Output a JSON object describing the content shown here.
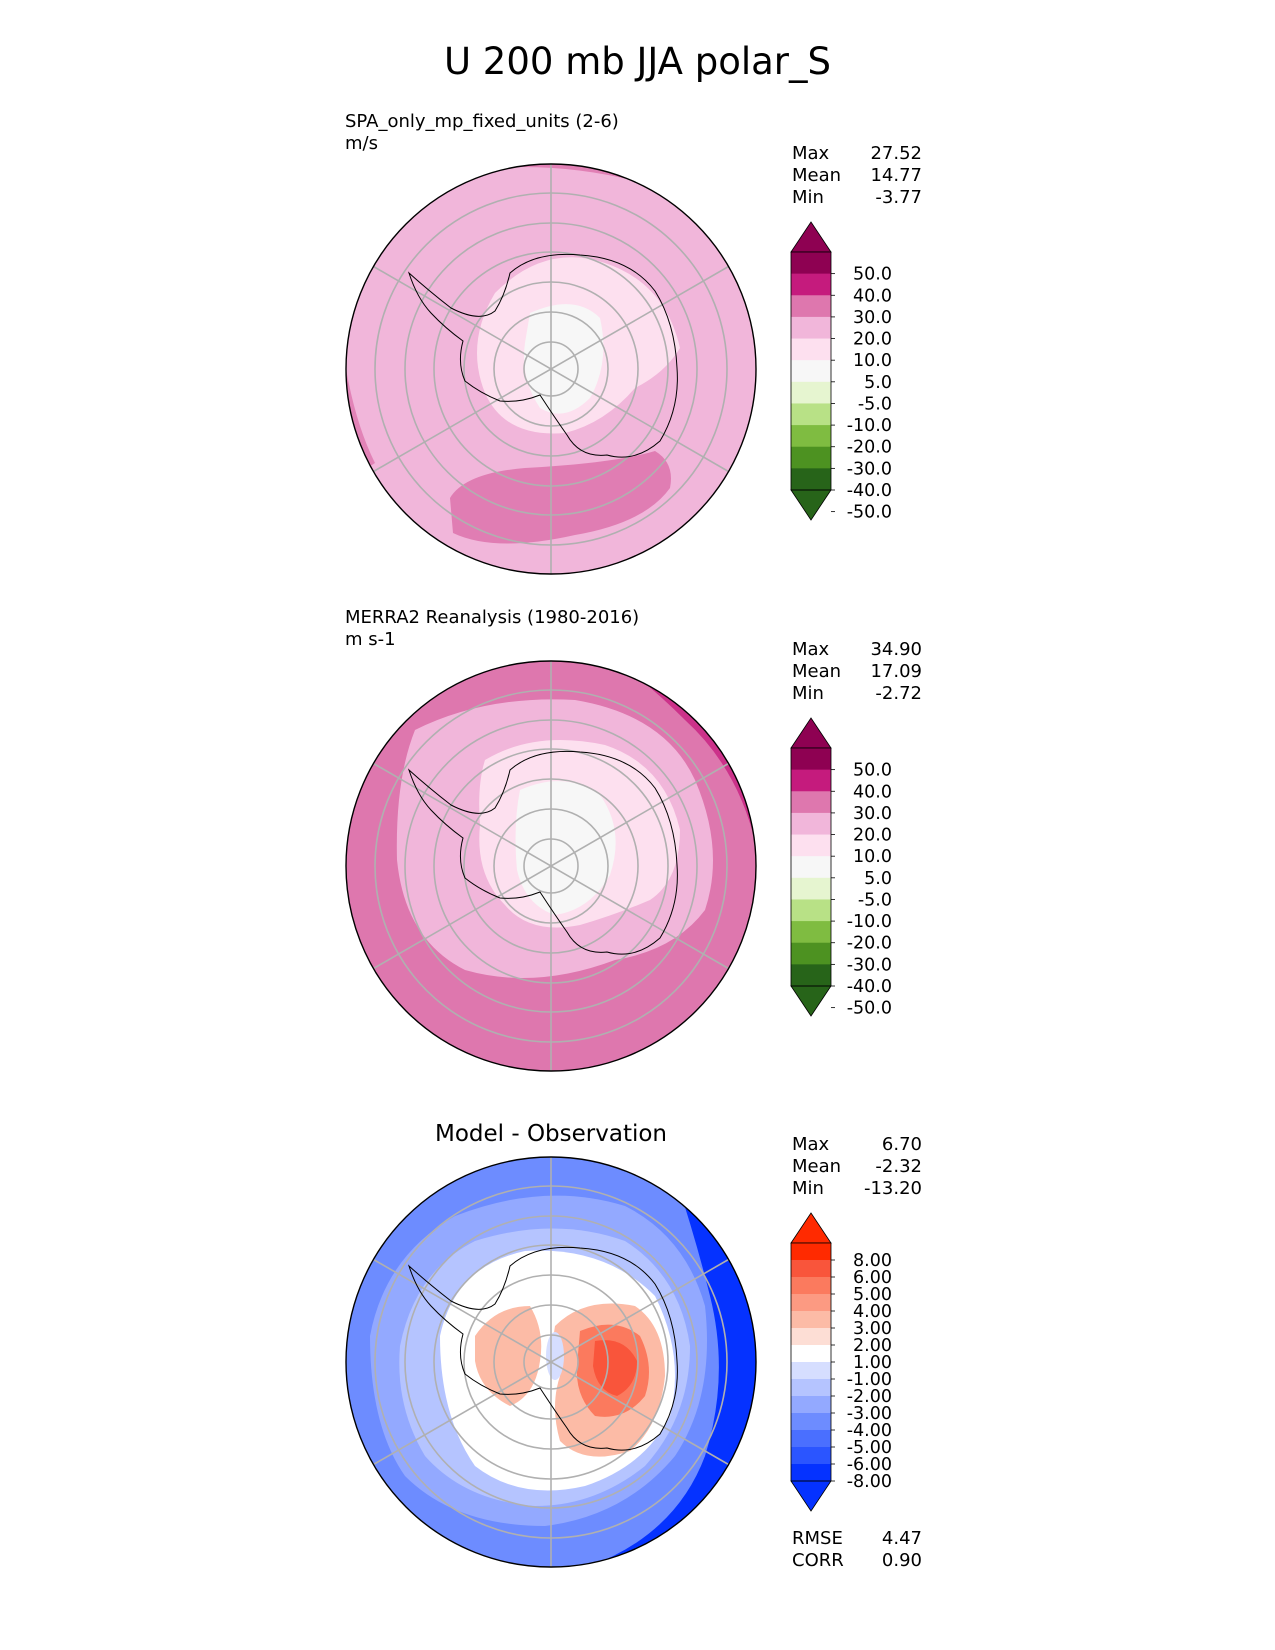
{
  "figure": {
    "title": "U 200 mb JJA polar_S"
  },
  "colors": {
    "pink_scale": [
      "#276419",
      "#4d9221",
      "#7fbc41",
      "#b8e186",
      "#e6f5d0",
      "#f7f7f7",
      "#fde0ef",
      "#f1b6da",
      "#de77ae",
      "#c51b7d",
      "#8e0152"
    ],
    "diff_scale": [
      "#0532ff",
      "#2b55ff",
      "#4a6fff",
      "#6d8cff",
      "#93a9ff",
      "#b5c4ff",
      "#d6deff",
      "#ffffff",
      "#fdded5",
      "#fcbba6",
      "#fc9a82",
      "#fb7a5e",
      "#f9553b",
      "#ff2a00"
    ],
    "grid": "#b0b0b0",
    "coast": "#000000"
  },
  "chart_data": [
    {
      "type": "heatmap",
      "name": "test",
      "title": "SPA_only_mp_fixed_units (2-6)",
      "units": "m/s",
      "projection": "south polar stereographic",
      "stats": {
        "max_label": "Max",
        "max": "27.52",
        "mean_label": "Mean",
        "mean": "14.77",
        "min_label": "Min",
        "min": "-3.77"
      },
      "colorbar": {
        "levels": [
          "50.0",
          "40.0",
          "30.0",
          "20.0",
          "10.0",
          "5.0",
          "-5.0",
          "-10.0",
          "-20.0",
          "-30.0",
          "-40.0",
          "-50.0"
        ],
        "extend": "both"
      }
    },
    {
      "type": "heatmap",
      "name": "reference",
      "title": "MERRA2 Reanalysis (1980-2016)",
      "units": "m s-1",
      "projection": "south polar stereographic",
      "stats": {
        "max_label": "Max",
        "max": "34.90",
        "mean_label": "Mean",
        "mean": "17.09",
        "min_label": "Min",
        "min": "-2.72"
      },
      "colorbar": {
        "levels": [
          "50.0",
          "40.0",
          "30.0",
          "20.0",
          "10.0",
          "5.0",
          "-5.0",
          "-10.0",
          "-20.0",
          "-30.0",
          "-40.0",
          "-50.0"
        ],
        "extend": "both"
      }
    },
    {
      "type": "heatmap",
      "name": "difference",
      "title": "Model - Observation",
      "projection": "south polar stereographic",
      "stats": {
        "max_label": "Max",
        "max": "6.70",
        "mean_label": "Mean",
        "mean": "-2.32",
        "min_label": "Min",
        "min": "-13.20"
      },
      "colorbar": {
        "levels": [
          "8.00",
          "6.00",
          "5.00",
          "4.00",
          "3.00",
          "2.00",
          "1.00",
          "-1.00",
          "-2.00",
          "-3.00",
          "-4.00",
          "-5.00",
          "-6.00",
          "-8.00"
        ],
        "extend": "both"
      },
      "metrics": {
        "rmse_label": "RMSE",
        "rmse": "4.47",
        "corr_label": "CORR",
        "corr": "0.90"
      }
    }
  ]
}
